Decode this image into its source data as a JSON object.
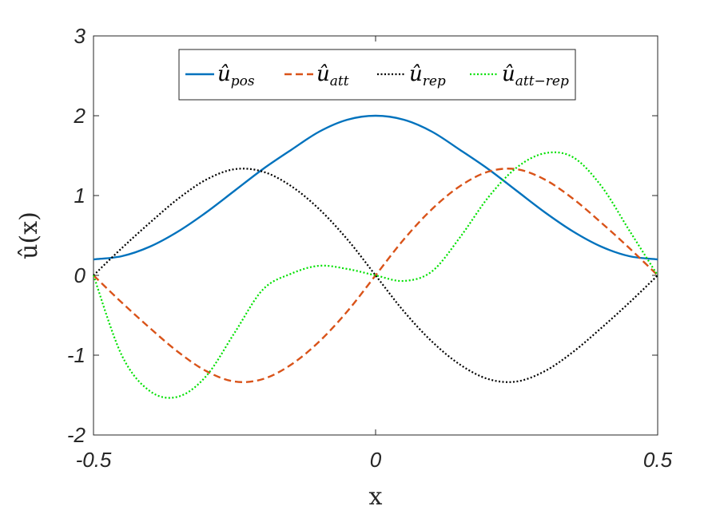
{
  "chart_data": {
    "type": "line",
    "xlabel": "x",
    "ylabel": "û(x)",
    "xlim": [
      -0.5,
      0.5
    ],
    "ylim": [
      -2,
      3
    ],
    "xticks": [
      "-0.5",
      "0",
      "0.5"
    ],
    "yticks": [
      "-2",
      "-1",
      "0",
      "1",
      "2",
      "3"
    ],
    "grid": false,
    "legend_position": "top-center",
    "x": [
      -0.5,
      -0.45,
      -0.4,
      -0.35,
      -0.3,
      -0.25,
      -0.2,
      -0.15,
      -0.1,
      -0.05,
      0.0,
      0.05,
      0.1,
      0.15,
      0.2,
      0.25,
      0.3,
      0.35,
      0.4,
      0.45,
      0.5
    ],
    "series": [
      {
        "name": "û",
        "subscript": "pos",
        "color": "#0072BD",
        "dash": "solid",
        "values": [
          0.2,
          0.24,
          0.36,
          0.55,
          0.79,
          1.06,
          1.33,
          1.57,
          1.8,
          1.95,
          2.0,
          1.95,
          1.8,
          1.57,
          1.33,
          1.06,
          0.79,
          0.55,
          0.36,
          0.24,
          0.2
        ]
      },
      {
        "name": "û",
        "subscript": "att",
        "color": "#D95319",
        "dash": "dashed",
        "values": [
          0.0,
          -0.34,
          -0.66,
          -0.96,
          -1.2,
          -1.33,
          -1.3,
          -1.12,
          -0.83,
          -0.45,
          0.0,
          0.45,
          0.83,
          1.12,
          1.3,
          1.33,
          1.2,
          0.96,
          0.66,
          0.34,
          0.0
        ]
      },
      {
        "name": "û",
        "subscript": "rep",
        "color": "#000000",
        "dash": "dotted",
        "values": [
          0.0,
          0.34,
          0.66,
          0.96,
          1.2,
          1.33,
          1.3,
          1.12,
          0.83,
          0.45,
          0.0,
          -0.45,
          -0.83,
          -1.12,
          -1.3,
          -1.33,
          -1.2,
          -0.96,
          -0.66,
          -0.34,
          0.0
        ]
      },
      {
        "name": "û",
        "subscript": "att−rep",
        "color": "#00E000",
        "dash": "dotted",
        "values": [
          0.0,
          -1.0,
          -1.45,
          -1.52,
          -1.26,
          -0.72,
          -0.18,
          0.02,
          0.12,
          0.08,
          0.0,
          -0.07,
          0.05,
          0.48,
          0.98,
          1.35,
          1.53,
          1.48,
          1.12,
          0.56,
          0.0
        ]
      }
    ]
  }
}
